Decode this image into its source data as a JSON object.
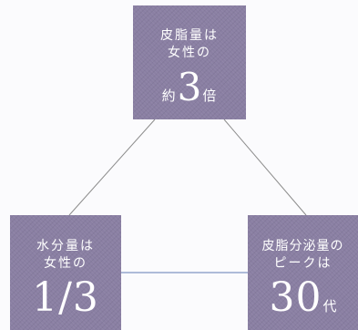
{
  "nodes": {
    "top": {
      "line1": "皮脂量は",
      "line2": "女性の",
      "prefix": "約",
      "value": "3",
      "suffix": "倍"
    },
    "left": {
      "line1": "水分量は",
      "line2": "女性の",
      "value": "1/3"
    },
    "right": {
      "line1": "皮脂分泌量の",
      "line2": "ピークは",
      "value": "30",
      "suffix": "代"
    }
  },
  "colors": {
    "box": "#8a7fa3",
    "connector_gray": "#8c8c8c",
    "connector_blue": "#7f95c4",
    "background": "#fbfbfd"
  }
}
